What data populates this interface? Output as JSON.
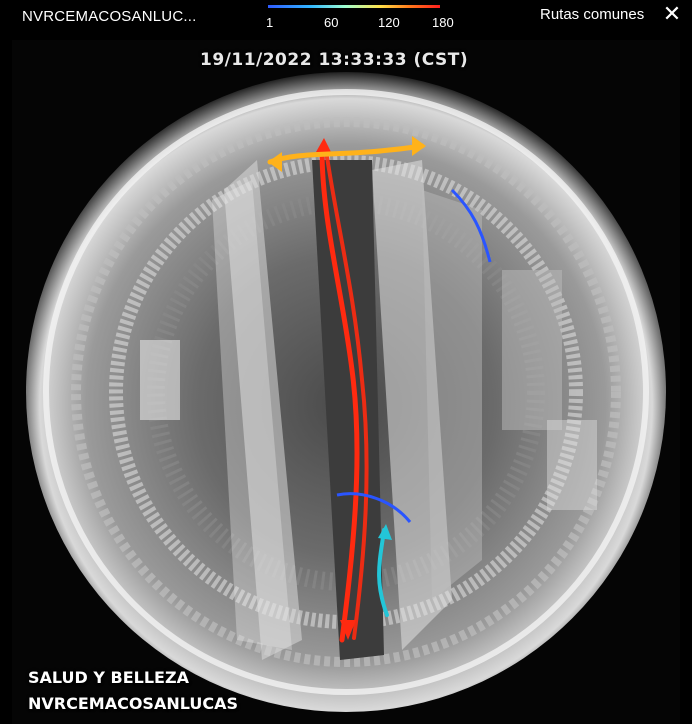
{
  "header": {
    "camera_title": "NVRCEMACOSANLUC...",
    "legend": {
      "ticks": [
        "1",
        "60",
        "120",
        "180"
      ],
      "gradient_colors": [
        "#2f5bff",
        "#32b8ff",
        "#a0ffd0",
        "#ffe24a",
        "#ff7a1a",
        "#ff1f1f"
      ]
    },
    "routes_label": "Rutas comunes",
    "close_icon": "close-icon"
  },
  "video": {
    "timestamp": "19/11/2022 13:33:33 (CST)",
    "zone_label": "SALUD Y BELLEZA",
    "store_label": "NVRCEMACOSANLUCAS",
    "route_colors": {
      "high": "#ff2a10",
      "medium": "#ffb21a",
      "low": "#2a55ff",
      "mid_low": "#23c6d8"
    }
  }
}
